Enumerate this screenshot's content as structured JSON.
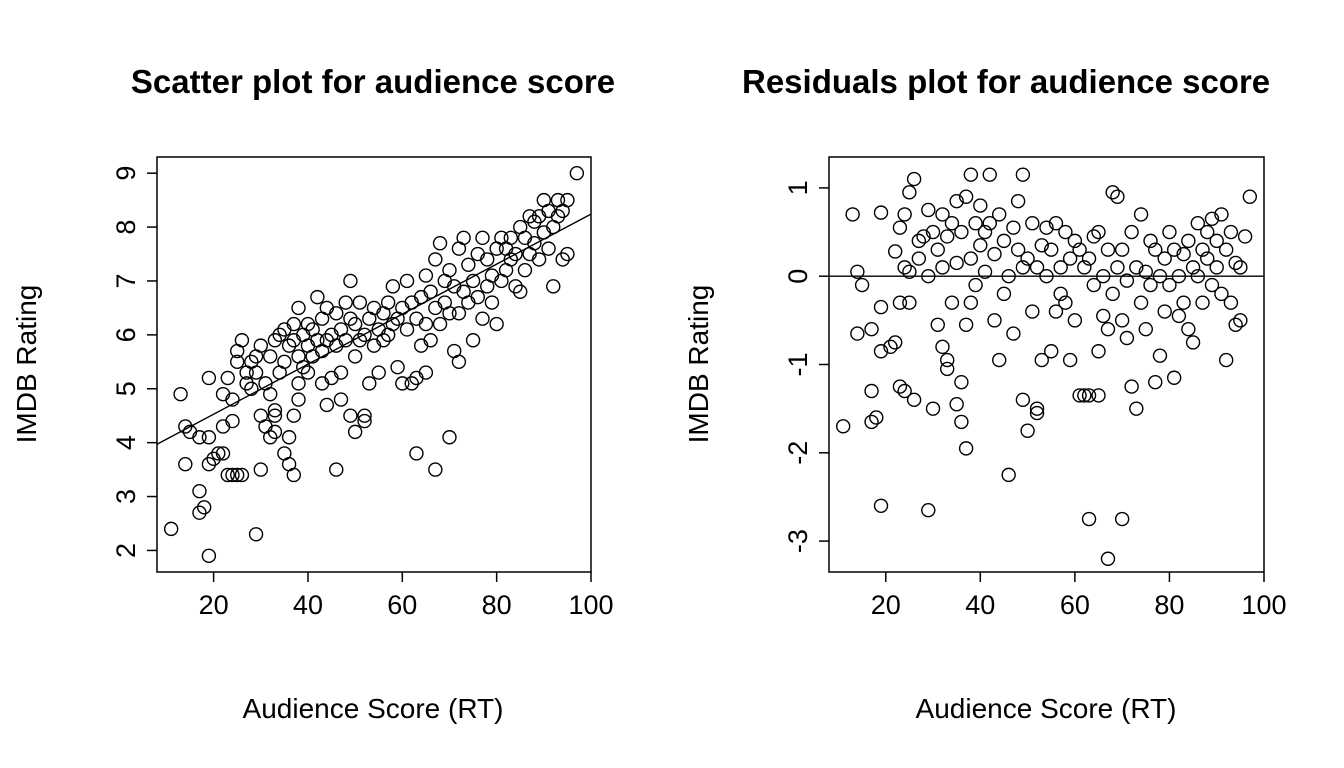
{
  "chart_data": [
    {
      "type": "scatter",
      "title": "Scatter plot for audience score",
      "xlabel": "Audience Score (RT)",
      "ylabel": "IMDB Rating",
      "xlim": [
        8,
        100
      ],
      "ylim": [
        1.6,
        9.3
      ],
      "xticks": [
        20,
        40,
        60,
        80,
        100
      ],
      "yticks": [
        2,
        3,
        4,
        5,
        6,
        7,
        8,
        9
      ],
      "regression_line": {
        "intercept": 3.6,
        "slope": 0.0464
      },
      "points": [
        [
          11,
          2.4
        ],
        [
          13,
          4.9
        ],
        [
          14,
          3.6
        ],
        [
          14,
          4.3
        ],
        [
          15,
          4.2
        ],
        [
          17,
          3.1
        ],
        [
          17,
          2.7
        ],
        [
          17,
          4.1
        ],
        [
          18,
          2.8
        ],
        [
          19,
          1.9
        ],
        [
          19,
          3.6
        ],
        [
          19,
          4.1
        ],
        [
          19,
          5.2
        ],
        [
          20,
          3.7
        ],
        [
          21,
          3.8
        ],
        [
          22,
          3.8
        ],
        [
          22,
          4.3
        ],
        [
          22,
          4.9
        ],
        [
          23,
          3.4
        ],
        [
          23,
          5.2
        ],
        [
          24,
          3.4
        ],
        [
          24,
          4.4
        ],
        [
          24,
          4.8
        ],
        [
          25,
          3.4
        ],
        [
          25,
          5.5
        ],
        [
          25,
          5.7
        ],
        [
          26,
          5.9
        ],
        [
          26,
          3.4
        ],
        [
          27,
          5.1
        ],
        [
          27,
          5.3
        ],
        [
          28,
          5.0
        ],
        [
          28,
          5.5
        ],
        [
          29,
          2.3
        ],
        [
          29,
          5.6
        ],
        [
          29,
          5.3
        ],
        [
          30,
          3.5
        ],
        [
          30,
          4.5
        ],
        [
          30,
          5.8
        ],
        [
          31,
          4.3
        ],
        [
          31,
          5.1
        ],
        [
          32,
          4.1
        ],
        [
          32,
          4.9
        ],
        [
          32,
          5.6
        ],
        [
          33,
          4.5
        ],
        [
          33,
          4.6
        ],
        [
          33,
          4.2
        ],
        [
          33,
          5.9
        ],
        [
          34,
          5.3
        ],
        [
          34,
          6.0
        ],
        [
          35,
          5.5
        ],
        [
          35,
          3.8
        ],
        [
          35,
          6.1
        ],
        [
          36,
          5.8
        ],
        [
          36,
          3.6
        ],
        [
          36,
          4.1
        ],
        [
          37,
          3.4
        ],
        [
          37,
          4.5
        ],
        [
          37,
          5.9
        ],
        [
          37,
          6.2
        ],
        [
          38,
          4.8
        ],
        [
          38,
          5.1
        ],
        [
          38,
          5.6
        ],
        [
          38,
          6.5
        ],
        [
          39,
          5.4
        ],
        [
          39,
          6.0
        ],
        [
          40,
          5.3
        ],
        [
          40,
          5.8
        ],
        [
          40,
          6.2
        ],
        [
          41,
          5.6
        ],
        [
          41,
          6.1
        ],
        [
          42,
          5.9
        ],
        [
          42,
          6.7
        ],
        [
          43,
          5.1
        ],
        [
          43,
          5.7
        ],
        [
          43,
          6.3
        ],
        [
          44,
          4.7
        ],
        [
          44,
          5.9
        ],
        [
          44,
          6.5
        ],
        [
          45,
          5.2
        ],
        [
          45,
          6.0
        ],
        [
          46,
          3.5
        ],
        [
          46,
          5.8
        ],
        [
          46,
          6.4
        ],
        [
          47,
          4.8
        ],
        [
          47,
          5.3
        ],
        [
          47,
          6.1
        ],
        [
          48,
          5.9
        ],
        [
          48,
          6.6
        ],
        [
          49,
          4.5
        ],
        [
          49,
          7.0
        ],
        [
          49,
          6.3
        ],
        [
          50,
          4.2
        ],
        [
          50,
          5.6
        ],
        [
          50,
          6.2
        ],
        [
          51,
          5.9
        ],
        [
          51,
          6.6
        ],
        [
          52,
          4.5
        ],
        [
          52,
          4.4
        ],
        [
          52,
          6.0
        ],
        [
          53,
          5.1
        ],
        [
          53,
          6.3
        ],
        [
          54,
          5.8
        ],
        [
          54,
          6.5
        ],
        [
          55,
          5.3
        ],
        [
          55,
          6.1
        ],
        [
          56,
          5.9
        ],
        [
          56,
          6.4
        ],
        [
          57,
          6.0
        ],
        [
          57,
          6.6
        ],
        [
          58,
          6.2
        ],
        [
          58,
          6.9
        ],
        [
          59,
          5.4
        ],
        [
          59,
          6.3
        ],
        [
          60,
          5.1
        ],
        [
          60,
          6.5
        ],
        [
          61,
          6.1
        ],
        [
          61,
          7.0
        ],
        [
          62,
          5.1
        ],
        [
          62,
          6.6
        ],
        [
          63,
          3.8
        ],
        [
          63,
          5.2
        ],
        [
          63,
          6.3
        ],
        [
          64,
          5.8
        ],
        [
          64,
          6.7
        ],
        [
          65,
          5.3
        ],
        [
          65,
          7.1
        ],
        [
          65,
          6.2
        ],
        [
          66,
          5.9
        ],
        [
          66,
          6.8
        ],
        [
          67,
          3.5
        ],
        [
          67,
          6.5
        ],
        [
          67,
          7.4
        ],
        [
          68,
          6.2
        ],
        [
          68,
          7.7
        ],
        [
          69,
          6.6
        ],
        [
          69,
          7.0
        ],
        [
          70,
          4.1
        ],
        [
          70,
          6.4
        ],
        [
          70,
          7.2
        ],
        [
          71,
          5.7
        ],
        [
          71,
          6.9
        ],
        [
          72,
          5.5
        ],
        [
          72,
          7.6
        ],
        [
          72,
          6.4
        ],
        [
          73,
          6.8
        ],
        [
          73,
          7.8
        ],
        [
          74,
          6.6
        ],
        [
          74,
          7.3
        ],
        [
          75,
          5.9
        ],
        [
          75,
          7.0
        ],
        [
          76,
          7.5
        ],
        [
          76,
          6.7
        ],
        [
          77,
          6.3
        ],
        [
          77,
          7.8
        ],
        [
          78,
          6.9
        ],
        [
          78,
          7.4
        ],
        [
          79,
          6.6
        ],
        [
          79,
          7.1
        ],
        [
          80,
          6.2
        ],
        [
          80,
          7.6
        ],
        [
          81,
          7.0
        ],
        [
          81,
          7.8
        ],
        [
          82,
          7.2
        ],
        [
          82,
          7.6
        ],
        [
          83,
          7.4
        ],
        [
          83,
          7.8
        ],
        [
          84,
          6.9
        ],
        [
          84,
          7.5
        ],
        [
          85,
          6.8
        ],
        [
          85,
          8.0
        ],
        [
          86,
          7.2
        ],
        [
          86,
          7.8
        ],
        [
          87,
          7.5
        ],
        [
          87,
          8.2
        ],
        [
          88,
          7.7
        ],
        [
          88,
          8.1
        ],
        [
          89,
          7.4
        ],
        [
          89,
          8.2
        ],
        [
          90,
          7.9
        ],
        [
          90,
          8.5
        ],
        [
          91,
          7.6
        ],
        [
          91,
          8.3
        ],
        [
          92,
          6.9
        ],
        [
          92,
          8.0
        ],
        [
          93,
          8.5
        ],
        [
          93,
          8.2
        ],
        [
          94,
          7.4
        ],
        [
          94,
          8.3
        ],
        [
          95,
          7.5
        ],
        [
          95,
          8.5
        ],
        [
          97,
          9.0
        ]
      ]
    },
    {
      "type": "scatter",
      "title": "Residuals plot for audience score",
      "xlabel": "Audience Score (RT)",
      "ylabel": "IMDB Rating",
      "xlim": [
        8,
        100
      ],
      "ylim": [
        -3.35,
        1.35
      ],
      "xticks": [
        20,
        40,
        60,
        80,
        100
      ],
      "yticks": [
        -3,
        -2,
        -1,
        0,
        1
      ],
      "reference_line_y": 0,
      "points": [
        [
          11,
          -1.7
        ],
        [
          13,
          0.7
        ],
        [
          14,
          -0.65
        ],
        [
          14,
          0.05
        ],
        [
          15,
          -0.1
        ],
        [
          17,
          -0.6
        ],
        [
          17,
          -1.3
        ],
        [
          17,
          -1.65
        ],
        [
          18,
          -1.6
        ],
        [
          19,
          -2.6
        ],
        [
          19,
          -0.85
        ],
        [
          19,
          -0.35
        ],
        [
          19,
          0.72
        ],
        [
          21,
          -0.8
        ],
        [
          22,
          -0.75
        ],
        [
          22,
          0.28
        ],
        [
          23,
          -0.3
        ],
        [
          23,
          0.55
        ],
        [
          23,
          -1.25
        ],
        [
          24,
          -1.3
        ],
        [
          24,
          0.1
        ],
        [
          24,
          0.7
        ],
        [
          25,
          -0.3
        ],
        [
          25,
          0.95
        ],
        [
          25,
          0.05
        ],
        [
          26,
          1.1
        ],
        [
          26,
          -1.4
        ],
        [
          27,
          0.4
        ],
        [
          27,
          0.2
        ],
        [
          28,
          0.45
        ],
        [
          29,
          -2.65
        ],
        [
          29,
          0.75
        ],
        [
          29,
          0.0
        ],
        [
          30,
          -1.5
        ],
        [
          30,
          0.5
        ],
        [
          31,
          -0.55
        ],
        [
          31,
          0.3
        ],
        [
          32,
          -0.8
        ],
        [
          32,
          0.1
        ],
        [
          32,
          0.7
        ],
        [
          33,
          -1.05
        ],
        [
          33,
          -0.95
        ],
        [
          33,
          0.45
        ],
        [
          34,
          -0.3
        ],
        [
          34,
          0.6
        ],
        [
          35,
          -1.45
        ],
        [
          35,
          0.85
        ],
        [
          35,
          0.15
        ],
        [
          36,
          -1.2
        ],
        [
          36,
          -1.65
        ],
        [
          36,
          0.5
        ],
        [
          37,
          -1.95
        ],
        [
          37,
          -0.55
        ],
        [
          37,
          0.9
        ],
        [
          38,
          -0.3
        ],
        [
          38,
          1.15
        ],
        [
          38,
          0.2
        ],
        [
          39,
          0.6
        ],
        [
          39,
          -0.1
        ],
        [
          40,
          0.35
        ],
        [
          40,
          0.8
        ],
        [
          41,
          0.5
        ],
        [
          41,
          0.05
        ],
        [
          42,
          1.15
        ],
        [
          42,
          0.6
        ],
        [
          43,
          -0.5
        ],
        [
          43,
          0.25
        ],
        [
          44,
          -0.95
        ],
        [
          44,
          0.7
        ],
        [
          45,
          0.4
        ],
        [
          45,
          -0.2
        ],
        [
          46,
          -2.25
        ],
        [
          46,
          0.0
        ],
        [
          47,
          -0.65
        ],
        [
          47,
          0.55
        ],
        [
          48,
          0.3
        ],
        [
          48,
          0.85
        ],
        [
          49,
          -1.4
        ],
        [
          49,
          1.15
        ],
        [
          49,
          0.1
        ],
        [
          50,
          -1.75
        ],
        [
          50,
          0.2
        ],
        [
          51,
          0.6
        ],
        [
          51,
          -0.4
        ],
        [
          52,
          -1.55
        ],
        [
          52,
          -1.5
        ],
        [
          52,
          0.1
        ],
        [
          53,
          -0.95
        ],
        [
          53,
          0.35
        ],
        [
          54,
          0.0
        ],
        [
          54,
          0.55
        ],
        [
          55,
          -0.85
        ],
        [
          55,
          0.3
        ],
        [
          56,
          -0.4
        ],
        [
          56,
          0.6
        ],
        [
          57,
          0.1
        ],
        [
          57,
          -0.2
        ],
        [
          58,
          0.5
        ],
        [
          58,
          -0.3
        ],
        [
          59,
          0.2
        ],
        [
          59,
          -0.95
        ],
        [
          60,
          0.4
        ],
        [
          60,
          -0.5
        ],
        [
          61,
          -1.35
        ],
        [
          61,
          0.3
        ],
        [
          62,
          -1.35
        ],
        [
          62,
          0.1
        ],
        [
          63,
          -2.75
        ],
        [
          63,
          -1.35
        ],
        [
          63,
          0.2
        ],
        [
          64,
          -0.1
        ],
        [
          64,
          0.45
        ],
        [
          65,
          -1.35
        ],
        [
          65,
          -0.85
        ],
        [
          65,
          0.5
        ],
        [
          66,
          0.0
        ],
        [
          66,
          -0.45
        ],
        [
          67,
          -3.2
        ],
        [
          67,
          0.3
        ],
        [
          67,
          -0.6
        ],
        [
          68,
          0.95
        ],
        [
          68,
          -0.2
        ],
        [
          69,
          0.9
        ],
        [
          69,
          0.1
        ],
        [
          70,
          -2.75
        ],
        [
          70,
          -0.5
        ],
        [
          70,
          0.3
        ],
        [
          71,
          -0.7
        ],
        [
          71,
          -0.05
        ],
        [
          72,
          -1.25
        ],
        [
          72,
          0.5
        ],
        [
          73,
          -1.5
        ],
        [
          73,
          0.1
        ],
        [
          74,
          0.7
        ],
        [
          74,
          -0.3
        ],
        [
          75,
          0.05
        ],
        [
          75,
          -0.6
        ],
        [
          76,
          0.4
        ],
        [
          76,
          -0.1
        ],
        [
          77,
          -1.2
        ],
        [
          77,
          0.3
        ],
        [
          78,
          0.0
        ],
        [
          78,
          -0.9
        ],
        [
          79,
          0.2
        ],
        [
          79,
          -0.4
        ],
        [
          80,
          0.5
        ],
        [
          80,
          -0.1
        ],
        [
          81,
          -1.15
        ],
        [
          81,
          0.3
        ],
        [
          82,
          0.0
        ],
        [
          82,
          -0.45
        ],
        [
          83,
          0.25
        ],
        [
          83,
          -0.3
        ],
        [
          84,
          0.4
        ],
        [
          84,
          -0.6
        ],
        [
          85,
          0.1
        ],
        [
          85,
          -0.75
        ],
        [
          86,
          0.6
        ],
        [
          86,
          0.0
        ],
        [
          87,
          0.3
        ],
        [
          87,
          -0.3
        ],
        [
          88,
          0.2
        ],
        [
          88,
          0.5
        ],
        [
          89,
          -0.1
        ],
        [
          89,
          0.65
        ],
        [
          90,
          0.1
        ],
        [
          90,
          0.4
        ],
        [
          91,
          0.7
        ],
        [
          91,
          -0.2
        ],
        [
          92,
          -0.95
        ],
        [
          92,
          0.3
        ],
        [
          93,
          0.5
        ],
        [
          93,
          -0.3
        ],
        [
          94,
          -0.55
        ],
        [
          94,
          0.15
        ],
        [
          95,
          0.1
        ],
        [
          95,
          -0.5
        ],
        [
          96,
          0.45
        ],
        [
          97,
          0.9
        ]
      ]
    }
  ]
}
